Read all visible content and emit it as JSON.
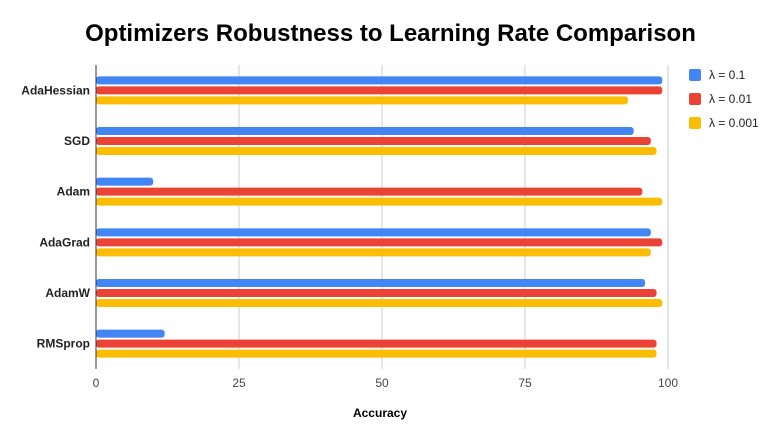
{
  "chart_data": {
    "type": "bar",
    "orientation": "horizontal",
    "title": "Optimizers Robustness to Learning Rate Comparison",
    "xlabel": "Accuracy",
    "ylabel": "",
    "xlim": [
      0,
      100
    ],
    "xticks": [
      "0",
      "25",
      "50",
      "75",
      "100"
    ],
    "grid": true,
    "legend_position": "right",
    "categories": [
      "AdaHessian",
      "SGD",
      "Adam",
      "AdaGrad",
      "AdamW",
      "RMSprop"
    ],
    "series": [
      {
        "name": "λ = 0.1",
        "color": "#4285f4",
        "values": [
          99,
          94,
          10,
          97,
          96,
          12
        ]
      },
      {
        "name": "λ = 0.01",
        "color": "#ea4335",
        "values": [
          99,
          97,
          95.5,
          99,
          98,
          98
        ]
      },
      {
        "name": "λ = 0.001",
        "color": "#fbbc04",
        "values": [
          93,
          98,
          99,
          97,
          99,
          98
        ]
      }
    ]
  }
}
